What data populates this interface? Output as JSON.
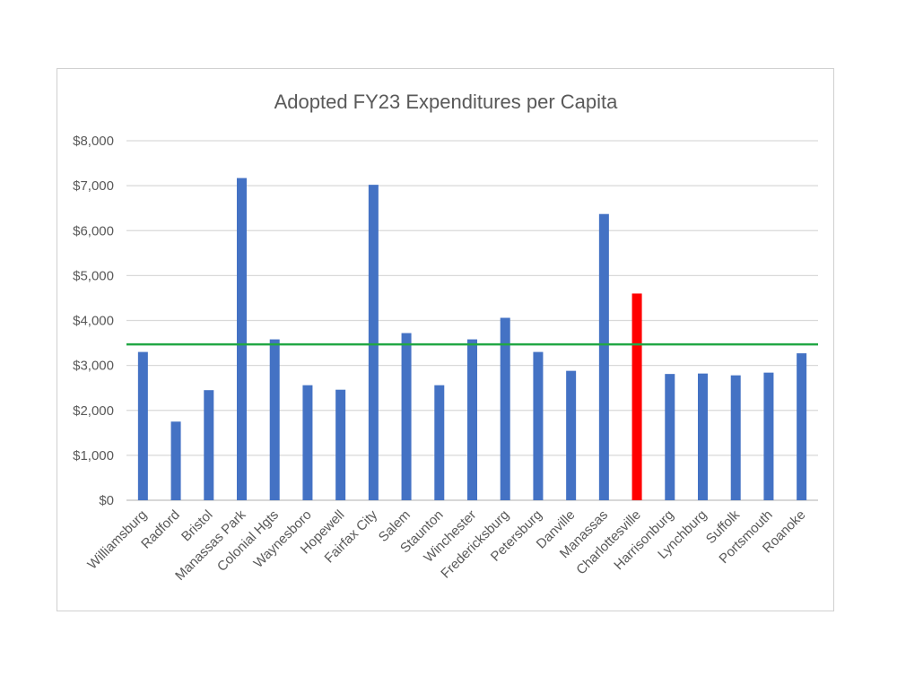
{
  "chart_data": {
    "type": "bar",
    "title": "Adopted FY23 Expenditures per Capita",
    "xlabel": "",
    "ylabel": "",
    "ylim": [
      0,
      8000
    ],
    "y_ticks": [
      0,
      1000,
      2000,
      3000,
      4000,
      5000,
      6000,
      7000,
      8000
    ],
    "y_tick_labels": [
      "$0",
      "$1,000",
      "$2,000",
      "$3,000",
      "$4,000",
      "$5,000",
      "$6,000",
      "$7,000",
      "$8,000"
    ],
    "grid": true,
    "legend": "none",
    "categories": [
      "Williamsburg",
      "Radford",
      "Bristol",
      "Manassas Park",
      "Colonial Hgts",
      "Waynesboro",
      "Hopewell",
      "Fairfax City",
      "Salem",
      "Staunton",
      "Winchester",
      "Fredericksburg",
      "Petersburg",
      "Danville",
      "Manassas",
      "Charlottesville",
      "Harrisonburg",
      "Lynchburg",
      "Suffolk",
      "Portsmouth",
      "Roanoke"
    ],
    "values": [
      3300,
      1750,
      2450,
      7170,
      3580,
      2560,
      2460,
      7020,
      3720,
      2560,
      3580,
      4060,
      3300,
      2880,
      6370,
      4600,
      2810,
      2820,
      2780,
      2840,
      3270
    ],
    "highlight_category": "Charlottesville",
    "reference_line": 3470,
    "colors": {
      "bar": "#4472C4",
      "highlight": "#FF0000",
      "reference_line": "#22A745",
      "grid": "#D9D9D9",
      "axis": "#BFBFBF",
      "text": "#595959"
    }
  }
}
